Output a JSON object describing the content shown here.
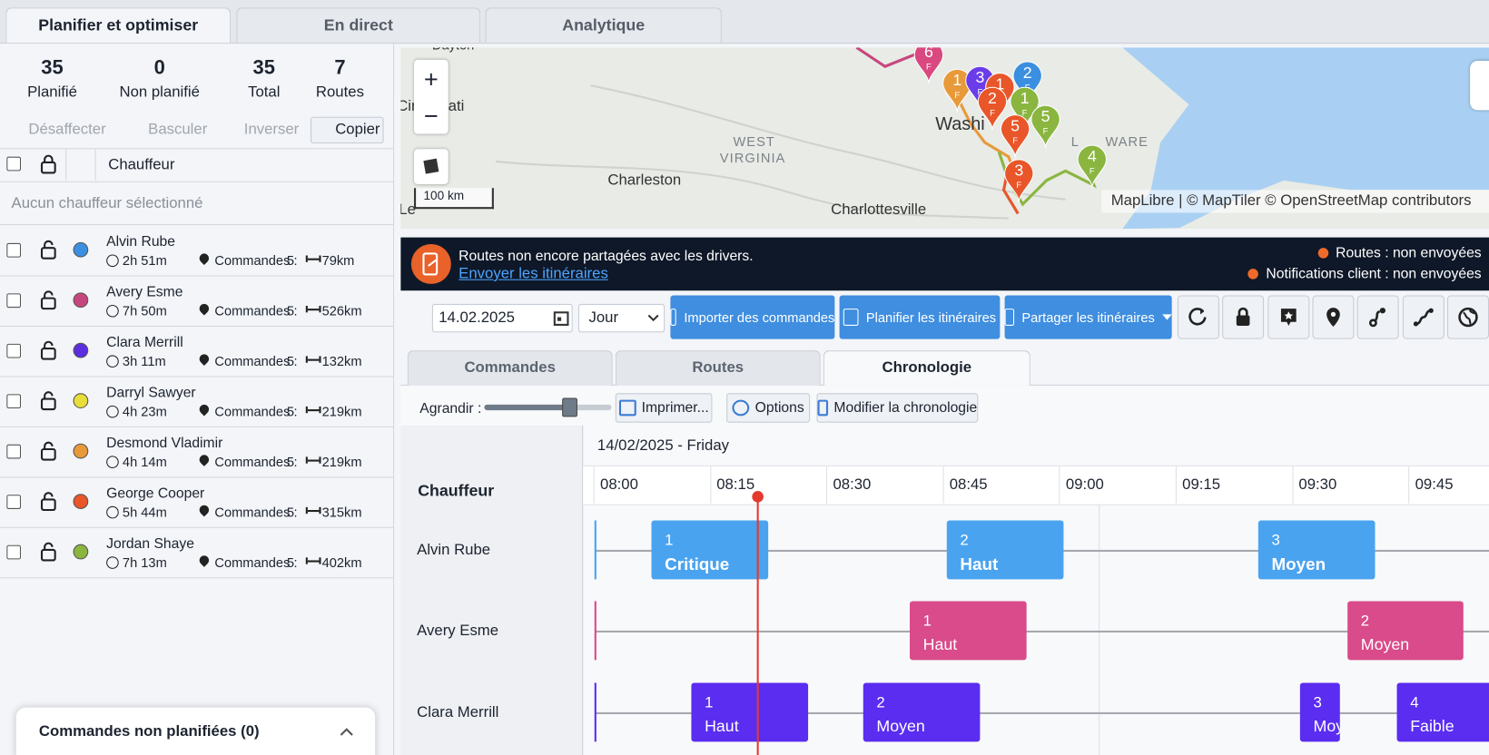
{
  "tabs": [
    "Planifier et optimiser",
    "En direct",
    "Analytique"
  ],
  "stats": [
    {
      "value": 35,
      "label": "Planifié"
    },
    {
      "value": 0,
      "label": "Non planifié"
    },
    {
      "value": 35,
      "label": "Total"
    },
    {
      "value": 7,
      "label": "Routes"
    }
  ],
  "actions": [
    "Désaffecter",
    "Basculer",
    "Inverser",
    "Copier"
  ],
  "driver_header": "Chauffeur",
  "no_driver": "Aucun chauffeur sélectionné",
  "orders_label": "Commandes :",
  "drivers": [
    {
      "name": "Alvin Rube",
      "color": "#3b8fe0",
      "duration": "2h 51m",
      "orders": 5,
      "distance": "79km"
    },
    {
      "name": "Avery Esme",
      "color": "#c8467e",
      "duration": "7h 50m",
      "orders": 5,
      "distance": "526km"
    },
    {
      "name": "Clara Merrill",
      "color": "#5b2ee0",
      "duration": "3h 11m",
      "orders": 5,
      "distance": "132km"
    },
    {
      "name": "Darryl Sawyer",
      "color": "#e8de3a",
      "duration": "4h 23m",
      "orders": 5,
      "distance": "219km"
    },
    {
      "name": "Desmond Vladimir",
      "color": "#e89a3a",
      "duration": "4h 14m",
      "orders": 5,
      "distance": "219km"
    },
    {
      "name": "George Cooper",
      "color": "#e8562a",
      "duration": "5h 44m",
      "orders": 5,
      "distance": "315km"
    },
    {
      "name": "Jordan Shaye",
      "color": "#8ab640",
      "duration": "7h 13m",
      "orders": 5,
      "distance": "402km"
    }
  ],
  "unplanned": "Commandes non planifiées (0)",
  "map": {
    "places": [
      "Dayton",
      "ati",
      "Cir",
      "WEST",
      "VIRGINIA",
      "Charleston",
      "Washi",
      "Charlottesville",
      "Le",
      "L",
      "WARE"
    ],
    "scale": "100 km",
    "attribution": "MapLibre | © MapTiler © OpenStreetMap contributors",
    "pin_sub": "F",
    "pins": [
      {
        "label": "6",
        "color": "#d9487e"
      },
      {
        "label": "1",
        "color": "#e89a3a"
      },
      {
        "label": "3",
        "color": "#6a3de8"
      },
      {
        "label": "1",
        "color": "#e8562a"
      },
      {
        "label": "2",
        "color": "#3b8fe0"
      },
      {
        "label": "2",
        "color": "#e8562a"
      },
      {
        "label": "1",
        "color": "#8ab640"
      },
      {
        "label": "5",
        "color": "#e8562a"
      },
      {
        "label": "5",
        "color": "#8ab640"
      },
      {
        "label": "3",
        "color": "#e8562a"
      },
      {
        "label": "4",
        "color": "#8ab640"
      }
    ]
  },
  "banner": {
    "message": "Routes non encore partagées avec les drivers.",
    "link": "Envoyer les itinéraires",
    "status": [
      "Routes : non envoyées",
      "Notifications client : non envoyées"
    ]
  },
  "toolbar": {
    "date": "14.02.2025",
    "view": "Jour",
    "buttons": [
      "Importer des commandes",
      "Planifier les itinéraires",
      "Partager les itinéraires"
    ]
  },
  "subtabs": [
    "Commandes",
    "Routes",
    "Chronologie"
  ],
  "timeline": {
    "zoom_label": "Agrandir :",
    "buttons": [
      "Imprimer...",
      "Options",
      "Modifier la chronologie"
    ],
    "date": "14/02/2025 - Friday",
    "column": "Chauffeur",
    "times": [
      "08:00",
      "08:15",
      "08:30",
      "08:45",
      "09:00",
      "09:15",
      "09:30",
      "09:45"
    ],
    "rows": [
      {
        "driver": "Alvin Rube",
        "color": "#4aa3ef",
        "events": [
          {
            "number": 1,
            "priority": "Critique"
          },
          {
            "number": 2,
            "priority": "Haut"
          },
          {
            "number": 3,
            "priority": "Moyen"
          }
        ]
      },
      {
        "driver": "Avery Esme",
        "color": "#d94b8a",
        "events": [
          {
            "number": 1,
            "priority": "Haut"
          },
          {
            "number": 2,
            "priority": "Moyen"
          }
        ]
      },
      {
        "driver": "Clara Merrill",
        "color": "#5a2df0",
        "events": [
          {
            "number": 1,
            "priority": "Haut"
          },
          {
            "number": 2,
            "priority": "Moyen"
          },
          {
            "number": 3,
            "priority": "Moye"
          },
          {
            "number": 4,
            "priority": "Faible"
          }
        ]
      }
    ]
  }
}
